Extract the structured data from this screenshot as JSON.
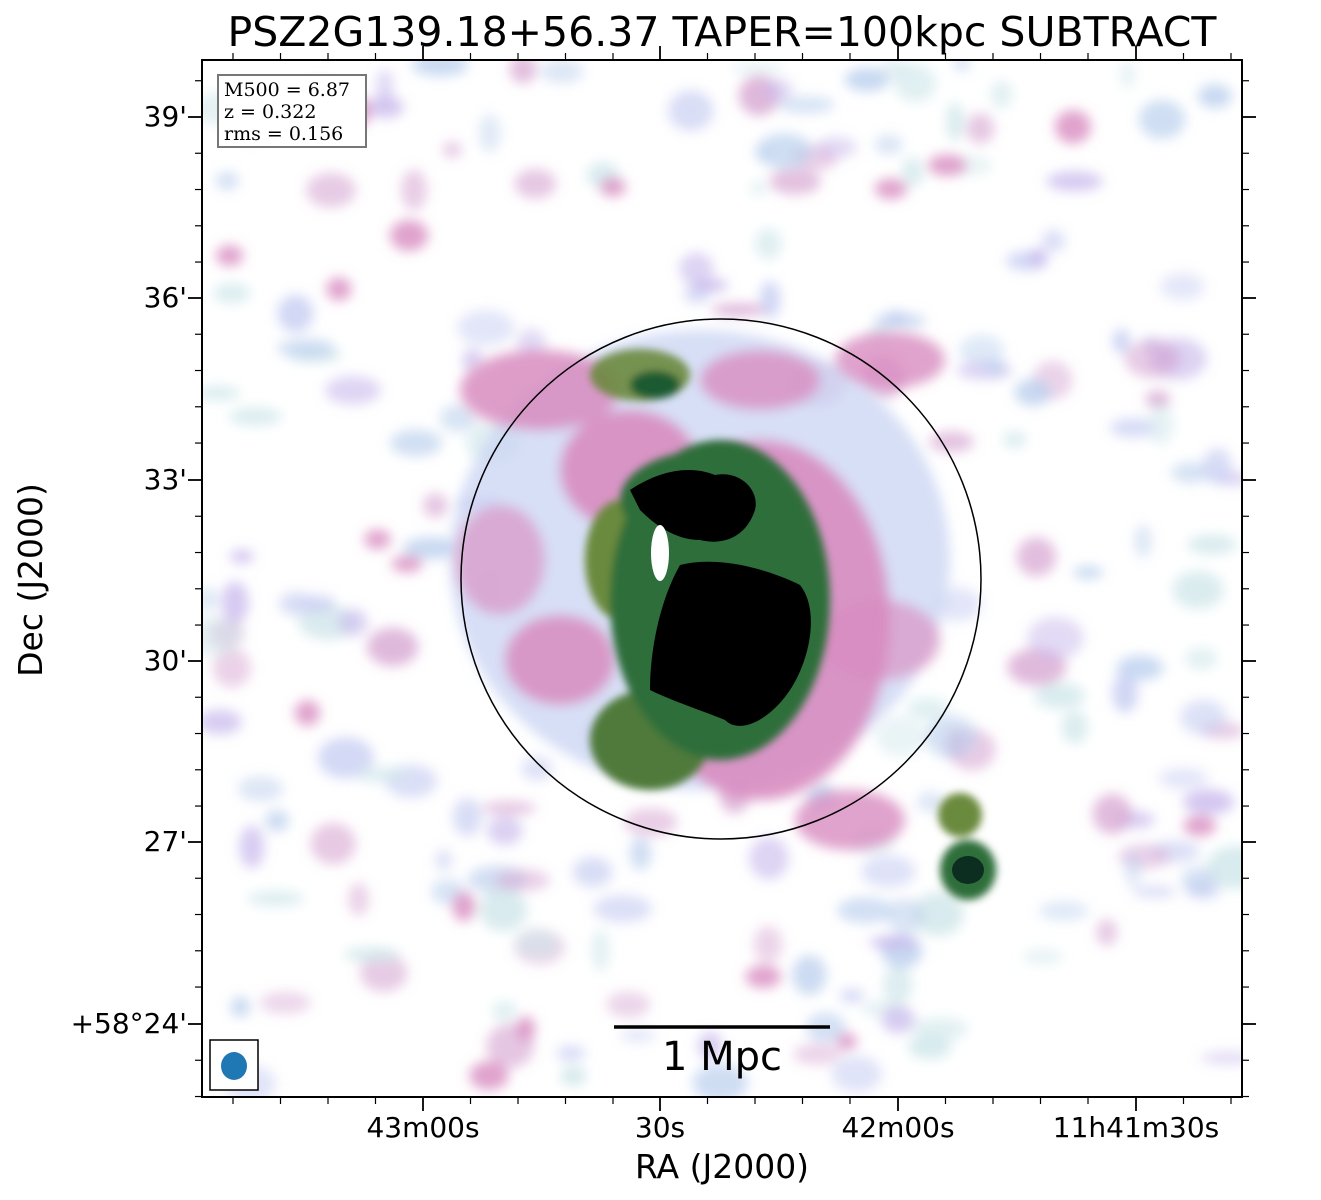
{
  "figure": {
    "title": "PSZ2G139.18+56.37 TAPER=100kpc SUBTRACT",
    "xlabel": "RA (J2000)",
    "ylabel": "Dec (J2000)",
    "x_ticks": [
      "43m00s",
      "30s",
      "42m00s",
      "11h41m30s"
    ],
    "y_ticks": [
      "39'",
      "36'",
      "33'",
      "30'",
      "27'",
      "+58°24'"
    ]
  },
  "info_box": {
    "line1": "M500 = 6.87",
    "line2": "z = 0.322",
    "line3": "rms = 0.156"
  },
  "scale_bar": {
    "label": "1 Mpc"
  },
  "colors": {
    "faint_emission": "#b7c8ef",
    "moderate_emission": "#d88cc0",
    "strong_emission": "#2f6e3a",
    "peak_emission": "#000000",
    "beam": "#1f77b4"
  }
}
